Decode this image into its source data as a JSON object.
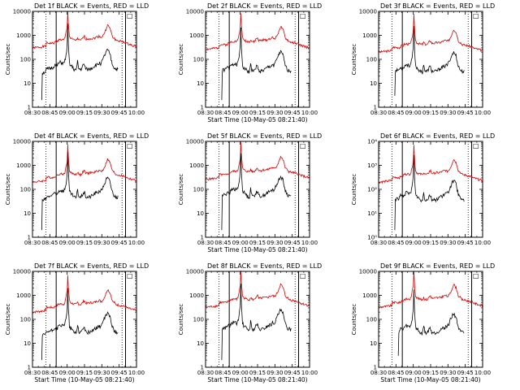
{
  "chart_data": {
    "type": "line",
    "x_tick_labels": [
      "08:30",
      "08:45",
      "09:00",
      "09:15",
      "09:30",
      "09:45",
      "10:00"
    ],
    "x_tick_minutes": [
      0,
      15,
      30,
      45,
      60,
      75,
      90
    ],
    "xlim_minutes": [
      0,
      90
    ],
    "ylabel": "Counts/sec",
    "xlabel": "Start Time (10-May-05 08:21:40)",
    "legend_box": "□",
    "dotted_lines_minutes": [
      11.5,
      77.5
    ],
    "solid_lines_minutes": [
      20.5,
      80.5
    ],
    "series_names": [
      "Events",
      "LLD"
    ],
    "series_colors": {
      "Events": "#000000",
      "LLD": "#dd0000"
    },
    "panels": [
      {
        "title": "Det 1f BLACK = Events, RED = LLD",
        "ylim": [
          1,
          10000
        ],
        "tick_labels": [
          "1",
          "10",
          "100",
          "1000",
          "10000"
        ],
        "tick_decades": [
          0,
          1,
          2,
          3,
          4
        ],
        "show_xlabel": false,
        "events_start": 8,
        "events_drop": 2,
        "events_scale": 0.42,
        "lld_scale": 1.5,
        "seed": 1
      },
      {
        "title": "Det 2f BLACK = Events, RED = LLD",
        "ylim": [
          1,
          10000
        ],
        "tick_labels": [
          "1",
          "10",
          "100",
          "1000",
          "10000"
        ],
        "tick_decades": [
          0,
          1,
          2,
          3,
          4
        ],
        "show_xlabel": true,
        "events_start": 14,
        "events_drop": 2,
        "events_scale": 0.36,
        "lld_scale": 1.3,
        "seed": 2
      },
      {
        "title": "Det 3f BLACK = Events, RED = LLD",
        "ylim": [
          1,
          10000
        ],
        "tick_labels": [
          "1",
          "10",
          "100",
          "1000",
          "10000"
        ],
        "tick_decades": [
          0,
          1,
          2,
          3,
          4
        ],
        "show_xlabel": false,
        "events_start": 14,
        "events_drop": 3,
        "events_scale": 0.34,
        "lld_scale": 1.0,
        "seed": 3
      },
      {
        "title": "Det 4f BLACK = Events, RED = LLD",
        "ylim": [
          1,
          10000
        ],
        "tick_labels": [
          "1",
          "10",
          "100",
          "1000",
          "10000"
        ],
        "tick_decades": [
          0,
          1,
          2,
          3,
          4
        ],
        "show_xlabel": false,
        "events_start": 8,
        "events_drop": 2,
        "events_scale": 0.52,
        "lld_scale": 1.0,
        "seed": 4
      },
      {
        "title": "Det 5f BLACK = Events, RED = LLD",
        "ylim": [
          1,
          10000
        ],
        "tick_labels": [
          "1",
          "10",
          "100",
          "1000",
          "10000"
        ],
        "tick_decades": [
          0,
          1,
          2,
          3,
          4
        ],
        "show_xlabel": true,
        "events_start": 14,
        "events_drop": 2,
        "events_scale": 0.58,
        "lld_scale": 1.3,
        "seed": 5
      },
      {
        "title": "Det 6f BLACK = Events, RED = LLD",
        "ylim": [
          1,
          10000
        ],
        "tick_labels": [
          "10⁰",
          "10¹",
          "10²",
          "10³",
          "10⁴"
        ],
        "tick_decades": [
          0,
          1,
          2,
          3,
          4
        ],
        "show_xlabel": false,
        "events_start": 14,
        "events_drop": 2,
        "events_scale": 0.4,
        "lld_scale": 1.0,
        "seed": 6
      },
      {
        "title": "Det 7f BLACK = Events, RED = LLD",
        "ylim": [
          1,
          10000
        ],
        "tick_labels": [
          "1",
          "10",
          "100",
          "1000",
          "10000"
        ],
        "tick_decades": [
          0,
          1,
          2,
          3,
          4
        ],
        "show_xlabel": true,
        "events_start": 8,
        "events_drop": 2,
        "events_scale": 0.32,
        "lld_scale": 1.0,
        "seed": 7
      },
      {
        "title": "Det 8f BLACK = Events, RED = LLD",
        "ylim": [
          1,
          10000
        ],
        "tick_labels": [
          "1",
          "10",
          "100",
          "1000",
          "10000"
        ],
        "tick_decades": [
          0,
          1,
          2,
          3,
          4
        ],
        "show_xlabel": true,
        "events_start": 14,
        "events_drop": 2,
        "events_scale": 0.42,
        "lld_scale": 1.6,
        "seed": 8
      },
      {
        "title": "Det 9f BLACK = Events, RED = LLD",
        "ylim": [
          1,
          10000
        ],
        "tick_labels": [
          "1",
          "10",
          "100",
          "1000",
          "10000"
        ],
        "tick_decades": [
          0,
          1,
          2,
          3,
          4
        ],
        "show_xlabel": true,
        "events_start": 17,
        "events_drop": 3,
        "events_scale": 0.3,
        "lld_scale": 1.6,
        "seed": 9
      }
    ],
    "lld_profile_minutes": [
      0,
      8,
      10,
      11.5,
      12,
      18,
      19,
      20,
      20.5,
      22,
      24,
      27,
      28,
      29,
      30,
      30.5,
      31,
      32,
      33,
      34,
      36,
      38,
      39,
      40,
      42,
      44,
      45,
      46,
      48,
      50,
      52,
      54,
      56,
      57,
      58,
      59,
      60,
      61,
      62,
      63,
      64,
      65,
      67,
      68,
      69,
      70,
      71,
      72,
      74,
      76,
      78,
      80,
      82,
      85,
      90
    ],
    "lld_profile_counts": [
      200,
      220,
      230,
      240,
      320,
      310,
      330,
      370,
      340,
      420,
      440,
      430,
      500,
      850,
      1600,
      7000,
      2200,
      600,
      500,
      470,
      430,
      420,
      520,
      430,
      410,
      560,
      600,
      470,
      470,
      500,
      490,
      520,
      580,
      600,
      620,
      560,
      570,
      650,
      800,
      1000,
      1400,
      1800,
      1300,
      950,
      600,
      530,
      500,
      420,
      400,
      380,
      360,
      340,
      300,
      270,
      230
    ],
    "events_profile_minutes": [
      0,
      11.5,
      12,
      18,
      19,
      20,
      20.5,
      22,
      24,
      27,
      28,
      29,
      30,
      30.5,
      31,
      32,
      33,
      34,
      36,
      38,
      39,
      40,
      42,
      44,
      45,
      46,
      48,
      50,
      52,
      54,
      56,
      57,
      58,
      59,
      60,
      61,
      62,
      63,
      64,
      65,
      67,
      68,
      69,
      70,
      71,
      72,
      74
    ],
    "events_profile_counts": [
      40,
      75,
      90,
      110,
      140,
      130,
      115,
      150,
      180,
      160,
      210,
      320,
      900,
      6500,
      1000,
      160,
      130,
      120,
      90,
      85,
      200,
      95,
      90,
      140,
      140,
      95,
      90,
      95,
      110,
      130,
      140,
      150,
      170,
      160,
      190,
      230,
      320,
      380,
      520,
      560,
      420,
      240,
      160,
      120,
      100,
      95,
      90
    ]
  }
}
